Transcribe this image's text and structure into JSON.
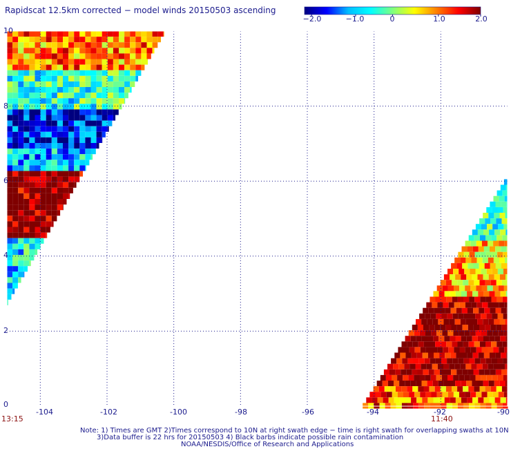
{
  "title": "Rapidscat 12.5km corrected − model winds 20150503 ascending",
  "colorbar": {
    "labels": [
      "−2.0",
      "−1.0",
      "0",
      "1.0",
      "2.0"
    ],
    "stops": [
      "#00007f",
      "#0000ff",
      "#00bfff",
      "#00ffff",
      "#7fff7f",
      "#ffff00",
      "#ff8000",
      "#ff0000",
      "#7f0000"
    ]
  },
  "times": {
    "left": "13:15",
    "right": "11:40"
  },
  "notes": {
    "line1": "Note: 1) Times are GMT 2)Times correspond to 10N at right swath edge − time is right swath for overlapping swaths at 10N",
    "line2": "3)Data buffer is 22 hrs for 20150503 4) Black barbs indicate possible rain contamination",
    "line3": "NOAA/NESDIS/Office of Research and Applications"
  },
  "chart_data": {
    "type": "heatmap",
    "title": "Rapidscat 12.5km corrected − model winds 20150503 ascending",
    "xlabel": "",
    "ylabel": "",
    "xlim": [
      -105,
      -90
    ],
    "ylim": [
      0,
      10
    ],
    "x_ticks": [
      "-104",
      "-102",
      "-100",
      "-98",
      "-96",
      "-94",
      "-92",
      "-90"
    ],
    "y_ticks": [
      "0",
      "2",
      "4",
      "6",
      "8",
      "10"
    ],
    "colorbar_range": [
      -2.0,
      2.0
    ],
    "grid": true,
    "swaths": [
      {
        "name": "left",
        "lon_west": -105.0,
        "lon_east": -100.3,
        "lat_top": 10.0,
        "lat_bottom": 2.8,
        "rows": [
          {
            "lat_max": 10.0,
            "lat_min": 9.0,
            "mean": 1.0
          },
          {
            "lat_max": 9.0,
            "lat_min": 8.0,
            "mean": -0.4
          },
          {
            "lat_max": 8.0,
            "lat_min": 7.0,
            "mean": -1.5
          },
          {
            "lat_max": 7.0,
            "lat_min": 6.4,
            "mean": -0.8
          },
          {
            "lat_max": 6.4,
            "lat_min": 4.5,
            "mean": 2.0
          },
          {
            "lat_max": 4.5,
            "lat_min": 2.8,
            "mean": -0.6
          }
        ]
      },
      {
        "name": "right",
        "lon_west": -94.4,
        "lon_east": -90.0,
        "lat_top": 6.2,
        "lat_bottom": 0.0,
        "rows": [
          {
            "lat_max": 6.2,
            "lat_min": 4.5,
            "mean": -0.3
          },
          {
            "lat_max": 4.5,
            "lat_min": 3.0,
            "mean": 0.8
          },
          {
            "lat_max": 3.0,
            "lat_min": 0.6,
            "mean": 1.9
          },
          {
            "lat_max": 0.6,
            "lat_min": 0.0,
            "mean": 1.2
          }
        ]
      }
    ]
  }
}
